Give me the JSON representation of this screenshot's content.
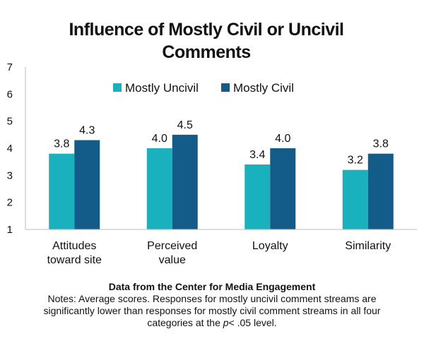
{
  "chart_data": {
    "type": "bar",
    "title_lines": [
      "Influence of Mostly Civil or Uncivil",
      "Comments"
    ],
    "categories": [
      [
        "Attitudes",
        "toward site"
      ],
      [
        "Perceived",
        "value"
      ],
      [
        "Loyalty"
      ],
      [
        "Similarity"
      ]
    ],
    "series": [
      {
        "name": "Mostly Uncivil",
        "color": "#1ab1be",
        "values": [
          3.8,
          4.0,
          3.4,
          3.2
        ],
        "labels": [
          "3.8",
          "4.0",
          "3.4",
          "3.2"
        ]
      },
      {
        "name": "Mostly Civil",
        "color": "#135c8a",
        "values": [
          4.3,
          4.5,
          4.0,
          3.8
        ],
        "labels": [
          "4.3",
          "4.5",
          "4.0",
          "3.8"
        ]
      }
    ],
    "ylim": [
      1,
      7
    ],
    "yticks": [
      1,
      2,
      3,
      4,
      5,
      6,
      7
    ],
    "legend_position": "top-center",
    "grid": false
  },
  "notes": {
    "source": "Data from the Center for Media Engagement",
    "line1": "Notes: Average scores. Responses for mostly uncivil comment streams are",
    "line2": "significantly lower than responses for mostly civil comment streams in all four",
    "line3_before": "categories at the",
    "line3_italic": "p",
    "line3_after": "< .05 level."
  }
}
